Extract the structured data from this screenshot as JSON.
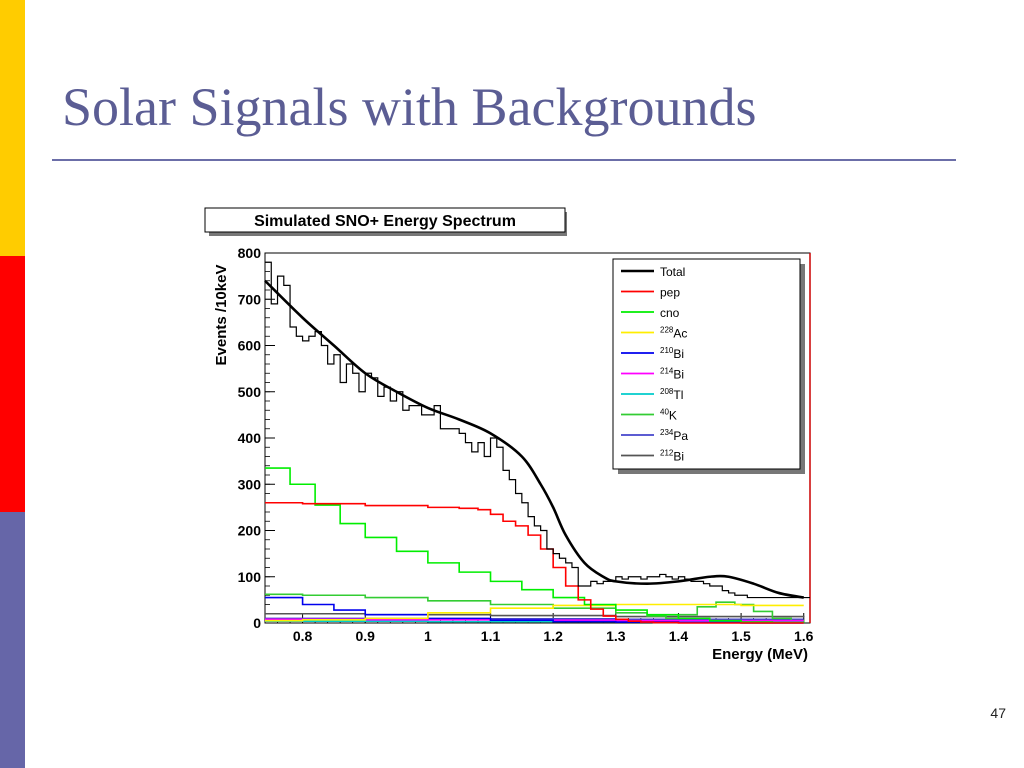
{
  "slide": {
    "title": "Solar Signals with Backgrounds",
    "page_number": "47",
    "bar_colors": [
      "#ffcc00",
      "#ff0000",
      "#6666a8"
    ],
    "title_color": "#5b5d94"
  },
  "chart_data": {
    "type": "line",
    "title": "Simulated SNO+ Energy Spectrum",
    "xlabel": "Energy (MeV)",
    "ylabel": "Events /10keV",
    "xlim": [
      0.74,
      1.61
    ],
    "ylim": [
      0,
      800
    ],
    "xticks": [
      {
        "value": 0.8,
        "label": "0.8"
      },
      {
        "value": 0.9,
        "label": "0.9"
      },
      {
        "value": 1.0,
        "label": "1"
      },
      {
        "value": 1.1,
        "label": "1.1"
      },
      {
        "value": 1.2,
        "label": "1.2"
      },
      {
        "value": 1.3,
        "label": "1.3"
      },
      {
        "value": 1.4,
        "label": "1.4"
      },
      {
        "value": 1.5,
        "label": "1.5"
      },
      {
        "value": 1.6,
        "label": "1.6"
      }
    ],
    "yticks": [
      {
        "value": 0,
        "label": "0"
      },
      {
        "value": 100,
        "label": "100"
      },
      {
        "value": 200,
        "label": "200"
      },
      {
        "value": 300,
        "label": "300"
      },
      {
        "value": 400,
        "label": "400"
      },
      {
        "value": 500,
        "label": "500"
      },
      {
        "value": 600,
        "label": "600"
      },
      {
        "value": 700,
        "label": "700"
      },
      {
        "value": 800,
        "label": "800"
      }
    ],
    "legend_position": "top-right",
    "histogram": {
      "name": "Total",
      "color": "#000000",
      "x": [
        0.74,
        0.75,
        0.76,
        0.77,
        0.78,
        0.79,
        0.8,
        0.81,
        0.82,
        0.83,
        0.84,
        0.85,
        0.86,
        0.87,
        0.88,
        0.89,
        0.9,
        0.91,
        0.92,
        0.93,
        0.94,
        0.95,
        0.96,
        0.97,
        0.98,
        0.99,
        1.0,
        1.01,
        1.02,
        1.03,
        1.04,
        1.05,
        1.06,
        1.07,
        1.08,
        1.09,
        1.1,
        1.11,
        1.12,
        1.13,
        1.14,
        1.15,
        1.16,
        1.17,
        1.18,
        1.19,
        1.2,
        1.21,
        1.22,
        1.23,
        1.24,
        1.25,
        1.26,
        1.27,
        1.28,
        1.29,
        1.3,
        1.31,
        1.32,
        1.33,
        1.34,
        1.35,
        1.36,
        1.37,
        1.38,
        1.39,
        1.4,
        1.41,
        1.42,
        1.43,
        1.44,
        1.45,
        1.46,
        1.47,
        1.48,
        1.49,
        1.5,
        1.51,
        1.52,
        1.53,
        1.54,
        1.55,
        1.56,
        1.57,
        1.58,
        1.59,
        1.6
      ],
      "values": [
        780,
        690,
        750,
        730,
        640,
        620,
        610,
        620,
        630,
        600,
        560,
        580,
        520,
        560,
        540,
        500,
        540,
        530,
        490,
        510,
        480,
        500,
        460,
        470,
        470,
        450,
        450,
        470,
        420,
        420,
        420,
        410,
        390,
        370,
        390,
        360,
        400,
        380,
        330,
        310,
        280,
        260,
        230,
        210,
        200,
        160,
        150,
        140,
        130,
        120,
        80,
        80,
        90,
        85,
        90,
        90,
        100,
        95,
        100,
        100,
        95,
        100,
        100,
        105,
        100,
        95,
        100,
        95,
        90,
        90,
        85,
        80,
        80,
        70,
        65,
        60,
        60,
        55,
        55,
        55,
        55,
        55,
        55,
        55,
        55,
        55,
        55
      ]
    },
    "series": [
      {
        "name": "Total",
        "color": "#000000",
        "style": "smooth",
        "x": [
          0.74,
          0.8,
          0.85,
          0.9,
          0.95,
          1.0,
          1.05,
          1.1,
          1.15,
          1.18,
          1.2,
          1.22,
          1.25,
          1.28,
          1.3,
          1.35,
          1.4,
          1.45,
          1.48,
          1.52,
          1.56,
          1.6
        ],
        "y": [
          740,
          660,
          600,
          540,
          500,
          465,
          440,
          410,
          360,
          300,
          250,
          190,
          130,
          100,
          90,
          85,
          90,
          100,
          100,
          85,
          65,
          55
        ]
      },
      {
        "name": "pep",
        "color": "#ff0000",
        "style": "step",
        "x": [
          0.74,
          0.8,
          0.9,
          1.0,
          1.05,
          1.08,
          1.1,
          1.12,
          1.14,
          1.16,
          1.18,
          1.2,
          1.22,
          1.24,
          1.26,
          1.28,
          1.3,
          1.32,
          1.34,
          1.36,
          1.4,
          1.6
        ],
        "y": [
          260,
          258,
          254,
          250,
          248,
          245,
          235,
          220,
          210,
          190,
          160,
          120,
          80,
          50,
          30,
          15,
          8,
          4,
          2,
          1,
          0,
          0
        ]
      },
      {
        "name": "cno",
        "color": "#00ee00",
        "style": "step",
        "x": [
          0.74,
          0.78,
          0.82,
          0.86,
          0.9,
          0.95,
          1.0,
          1.05,
          1.1,
          1.15,
          1.2,
          1.25,
          1.3,
          1.35,
          1.4,
          1.45,
          1.5,
          1.55,
          1.6
        ],
        "y": [
          335,
          300,
          255,
          215,
          185,
          155,
          130,
          110,
          90,
          72,
          55,
          40,
          28,
          18,
          10,
          5,
          2,
          1,
          0
        ]
      },
      {
        "name": "228Ac",
        "color": "#ffee00",
        "style": "step",
        "x": [
          0.74,
          0.8,
          0.9,
          1.0,
          1.1,
          1.2,
          1.3,
          1.4,
          1.5,
          1.6
        ],
        "y": [
          5,
          7,
          10,
          22,
          32,
          38,
          40,
          40,
          38,
          38
        ]
      },
      {
        "name": "210Bi",
        "color": "#0000ee",
        "style": "step",
        "x": [
          0.74,
          0.8,
          0.85,
          0.9,
          1.0,
          1.1,
          1.2,
          1.3,
          1.4,
          1.5,
          1.6
        ],
        "y": [
          55,
          40,
          28,
          18,
          10,
          6,
          3,
          2,
          1,
          0,
          0
        ]
      },
      {
        "name": "214Bi",
        "color": "#ff00ff",
        "style": "step",
        "x": [
          0.74,
          0.9,
          1.1,
          1.3,
          1.5,
          1.6
        ],
        "y": [
          8,
          7,
          6,
          5,
          5,
          5
        ]
      },
      {
        "name": "208Tl",
        "color": "#00cccc",
        "style": "step",
        "x": [
          0.74,
          1.0,
          1.3,
          1.6
        ],
        "y": [
          4,
          3,
          3,
          3
        ]
      },
      {
        "name": "40K",
        "color": "#33cc33",
        "style": "step",
        "x": [
          0.74,
          0.8,
          0.9,
          1.0,
          1.1,
          1.2,
          1.3,
          1.35,
          1.38,
          1.4,
          1.43,
          1.46,
          1.49,
          1.52,
          1.55,
          1.58,
          1.6
        ],
        "y": [
          62,
          60,
          55,
          48,
          40,
          32,
          22,
          15,
          10,
          18,
          35,
          45,
          40,
          25,
          10,
          5,
          3
        ]
      },
      {
        "name": "234Pa",
        "color": "#4444cc",
        "style": "step",
        "x": [
          0.74,
          1.0,
          1.3,
          1.6
        ],
        "y": [
          10,
          9,
          8,
          8
        ]
      },
      {
        "name": "212Bi",
        "color": "#555555",
        "style": "step",
        "x": [
          0.74,
          0.9,
          1.1,
          1.3,
          1.6
        ],
        "y": [
          20,
          18,
          16,
          14,
          12
        ]
      }
    ],
    "legend": [
      {
        "label": "Total",
        "color": "#000000"
      },
      {
        "label": "pep",
        "color": "#ff0000"
      },
      {
        "label": "cno",
        "color": "#00ee00"
      },
      {
        "label": "Ac",
        "sup": "228",
        "color": "#ffee00"
      },
      {
        "label": "Bi",
        "sup": "210",
        "color": "#0000ee"
      },
      {
        "label": "Bi",
        "sup": "214",
        "color": "#ff00ff"
      },
      {
        "label": "Tl",
        "sup": "208",
        "color": "#00cccc"
      },
      {
        "label": "K",
        "sup": "40",
        "color": "#33cc33"
      },
      {
        "label": "Pa",
        "sup": "234",
        "color": "#4444cc"
      },
      {
        "label": "Bi",
        "sup": "212",
        "color": "#555555"
      }
    ]
  }
}
